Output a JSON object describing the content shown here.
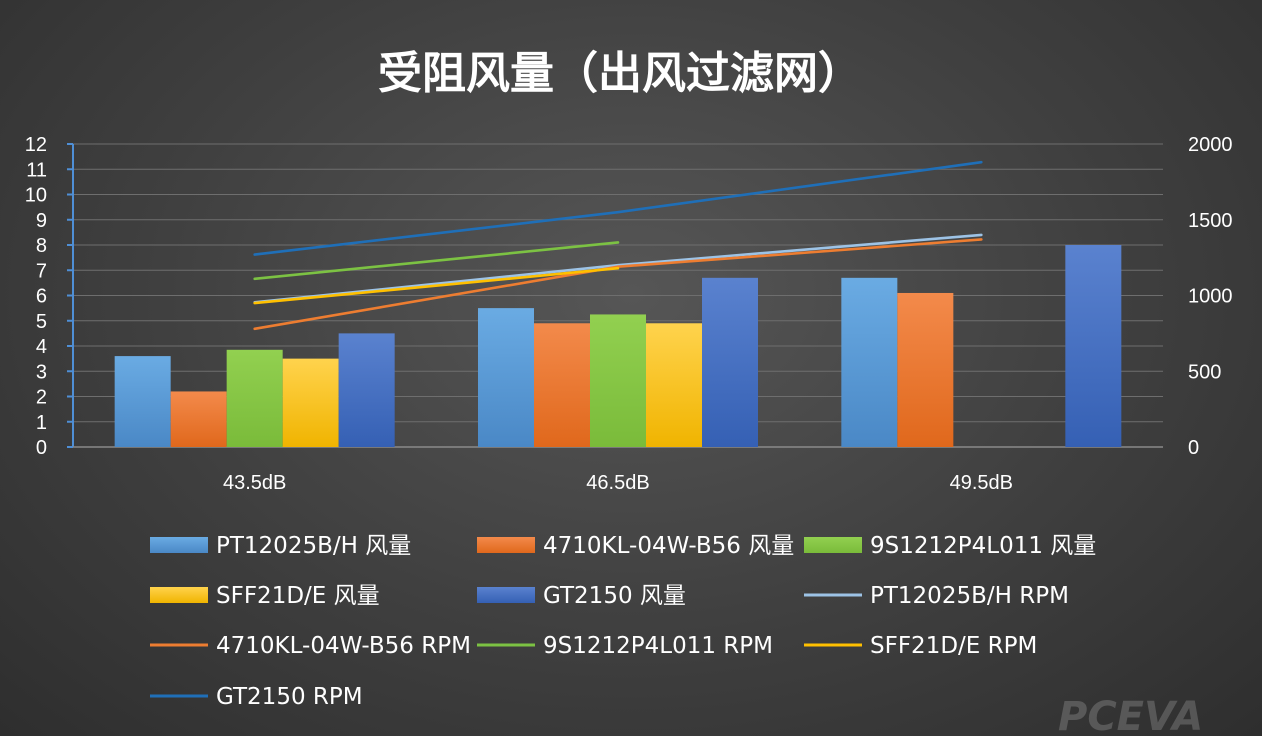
{
  "chart_data": {
    "type": "bar",
    "title": "受阻风量（出风过滤网）",
    "categories": [
      "43.5dB",
      "46.5dB",
      "49.5dB"
    ],
    "y_left": {
      "ylim": [
        0,
        12
      ],
      "ticks": [
        "0",
        "1",
        "2",
        "3",
        "4",
        "5",
        "6",
        "7",
        "8",
        "9",
        "10",
        "11",
        "12"
      ]
    },
    "y_right": {
      "ylim": [
        0,
        2000
      ],
      "ticks": [
        "0",
        "500",
        "1000",
        "1500",
        "2000"
      ]
    },
    "grid": true,
    "legend_position": "bottom",
    "bar_series": [
      {
        "name": "PT12025B/H 风量",
        "color": "#5b9bd5",
        "values": [
          3.6,
          5.5,
          6.7
        ]
      },
      {
        "name": "4710KL-04W-B56 风量",
        "color": "#ed7d31",
        "values": [
          2.2,
          4.9,
          6.1
        ]
      },
      {
        "name": "9S1212P4L011 风量",
        "color": "#8bc34a",
        "values": [
          3.85,
          5.25,
          null
        ]
      },
      {
        "name": "SFF21D/E 风量",
        "color": "#ffc000",
        "values": [
          3.5,
          4.9,
          null
        ]
      },
      {
        "name": "GT2150 风量",
        "color": "#4472c4",
        "values": [
          4.5,
          6.7,
          8.0
        ]
      }
    ],
    "line_series": [
      {
        "name": "PT12025B/H RPM",
        "color": "#9dc3e6",
        "values": [
          955,
          1200,
          1400
        ]
      },
      {
        "name": "4710KL-04W-B56 RPM",
        "color": "#ed7d31",
        "values": [
          780,
          1190,
          1370
        ]
      },
      {
        "name": "9S1212P4L011 RPM",
        "color": "#7cc243",
        "values": [
          1110,
          1350,
          null
        ]
      },
      {
        "name": "SFF21D/E RPM",
        "color": "#ffc000",
        "values": [
          950,
          1180,
          null
        ]
      },
      {
        "name": "GT2150 RPM",
        "color": "#1f6fb8",
        "values": [
          1270,
          1550,
          1880
        ]
      }
    ]
  },
  "watermark": "PCEVA"
}
